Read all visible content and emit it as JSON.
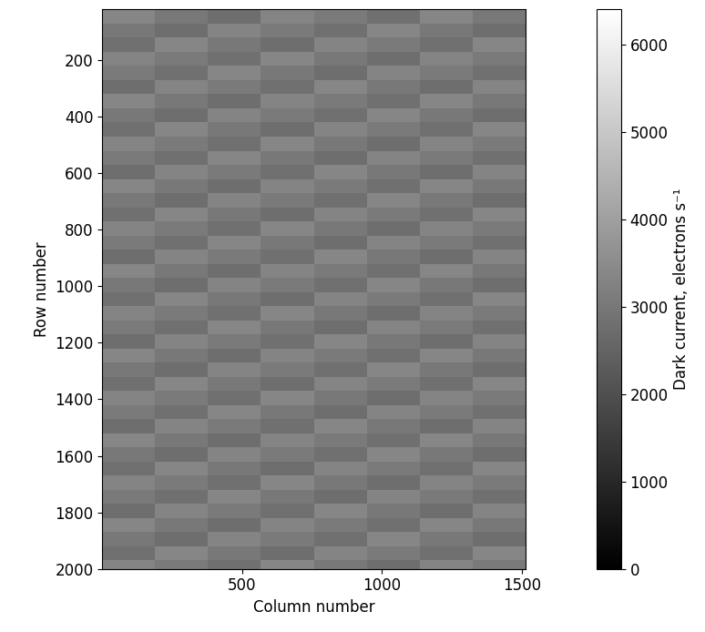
{
  "chart_data": {
    "type": "heatmap",
    "xlabel": "Column number",
    "ylabel": "Row number",
    "colorbar_label": "Dark current, electrons s⁻¹",
    "color": "gray",
    "xlim": [
      1,
      1512
    ],
    "xticks": [
      500,
      1000,
      1500
    ],
    "ylim": [
      2000,
      20
    ],
    "yticks": [
      200,
      400,
      600,
      800,
      1000,
      1200,
      1400,
      1600,
      1800,
      2000
    ],
    "colorbar_lim": [
      0,
      6400
    ],
    "colorbar_ticks": [
      0,
      1000,
      2000,
      3000,
      4000,
      5000,
      6000
    ],
    "x_edges": [
      1,
      190,
      379,
      568,
      757,
      946,
      1135,
      1324,
      1512
    ],
    "y_edges": [
      20,
      70,
      120,
      170,
      220,
      270,
      320,
      370,
      420,
      470,
      520,
      570,
      620,
      670,
      720,
      770,
      820,
      870,
      920,
      970,
      1020,
      1070,
      1120,
      1170,
      1220,
      1270,
      1320,
      1370,
      1420,
      1470,
      1520,
      1570,
      1620,
      1670,
      1720,
      1770,
      1820,
      1870,
      1920,
      1970,
      2000
    ],
    "cells": [
      [
        3350,
        3000,
        2750,
        3300,
        3050,
        2800,
        3350,
        3000
      ],
      [
        3000,
        2750,
        3300,
        3050,
        2800,
        3350,
        3000,
        2750
      ],
      [
        2800,
        3350,
        3000,
        2750,
        3300,
        3050,
        2800,
        3350
      ],
      [
        3300,
        3050,
        2800,
        3350,
        3000,
        2750,
        3300,
        3050
      ],
      [
        3050,
        2800,
        3350,
        3000,
        2750,
        3300,
        3050,
        2800
      ],
      [
        2750,
        3300,
        3050,
        2800,
        3350,
        3000,
        2750,
        3300
      ],
      [
        3350,
        3000,
        2750,
        3300,
        3050,
        2800,
        3350,
        3000
      ],
      [
        3000,
        2750,
        3300,
        3050,
        2800,
        3350,
        3000,
        2750
      ],
      [
        2800,
        3350,
        3000,
        2750,
        3300,
        3050,
        2800,
        3350
      ],
      [
        3300,
        3050,
        2800,
        3350,
        3000,
        2750,
        3300,
        3050
      ],
      [
        3050,
        2800,
        3350,
        3000,
        2750,
        3300,
        3050,
        2800
      ],
      [
        2750,
        3300,
        3050,
        2800,
        3350,
        3000,
        2750,
        3300
      ],
      [
        3350,
        3000,
        2750,
        3300,
        3050,
        2800,
        3350,
        3000
      ],
      [
        3000,
        2750,
        3300,
        3050,
        2800,
        3350,
        3000,
        2750
      ],
      [
        2800,
        3350,
        3000,
        2750,
        3300,
        3050,
        2800,
        3350
      ],
      [
        3300,
        3050,
        2800,
        3350,
        3000,
        2750,
        3300,
        3050
      ],
      [
        3050,
        2800,
        3350,
        3000,
        2750,
        3300,
        3050,
        2800
      ],
      [
        2750,
        3300,
        3050,
        2800,
        3350,
        3000,
        2750,
        3300
      ],
      [
        3350,
        3000,
        2750,
        3300,
        3050,
        2800,
        3350,
        3000
      ],
      [
        3000,
        2750,
        3300,
        3050,
        2800,
        3350,
        3000,
        2750
      ],
      [
        2800,
        3350,
        3000,
        2750,
        3300,
        3050,
        2800,
        3350
      ],
      [
        3300,
        3050,
        2800,
        3350,
        3000,
        2750,
        3300,
        3050
      ],
      [
        3050,
        2800,
        3350,
        3000,
        2750,
        3300,
        3050,
        2800
      ],
      [
        2750,
        3300,
        3050,
        2800,
        3350,
        3000,
        2750,
        3300
      ],
      [
        3350,
        3000,
        2750,
        3300,
        3050,
        2800,
        3350,
        3000
      ],
      [
        3000,
        2750,
        3300,
        3050,
        2800,
        3350,
        3000,
        2750
      ],
      [
        2800,
        3350,
        3000,
        2750,
        3300,
        3050,
        2800,
        3350
      ],
      [
        3300,
        3050,
        2800,
        3350,
        3000,
        2750,
        3300,
        3050
      ],
      [
        3050,
        2800,
        3350,
        3000,
        2750,
        3300,
        3050,
        2800
      ],
      [
        2750,
        3300,
        3050,
        2800,
        3350,
        3000,
        2750,
        3300
      ],
      [
        3350,
        3000,
        2750,
        3300,
        3050,
        2800,
        3350,
        3000
      ],
      [
        3000,
        2750,
        3300,
        3050,
        2800,
        3350,
        3000,
        2750
      ],
      [
        2800,
        3350,
        3000,
        2750,
        3300,
        3050,
        2800,
        3350
      ],
      [
        3300,
        3050,
        2800,
        3350,
        3000,
        2750,
        3300,
        3050
      ],
      [
        3050,
        2800,
        3350,
        3000,
        2750,
        3300,
        3050,
        2800
      ],
      [
        2750,
        3300,
        3050,
        2800,
        3350,
        3000,
        2750,
        3300
      ],
      [
        3350,
        3000,
        2750,
        3300,
        3050,
        2800,
        3350,
        3000
      ],
      [
        3000,
        2750,
        3300,
        3050,
        2800,
        3350,
        3000,
        2750
      ],
      [
        2800,
        3350,
        3000,
        2750,
        3300,
        3050,
        2800,
        3350
      ],
      [
        3300,
        3050,
        2800,
        3350,
        3000,
        2750,
        3300,
        3050
      ]
    ]
  }
}
